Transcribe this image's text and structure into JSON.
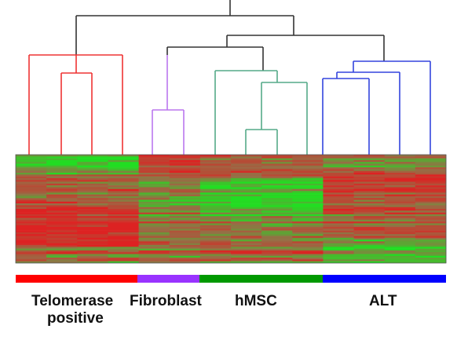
{
  "groups": [
    {
      "label_line1": "Telomerase",
      "label_line2": "positive",
      "color": "#ff0000"
    },
    {
      "label_line1": "Fibroblast",
      "color": "#9933ff"
    },
    {
      "label_line1": "hMSC",
      "color": "#009900"
    },
    {
      "label_line1": "ALT",
      "color": "#0000ff"
    }
  ],
  "colors": {
    "root_tree": "#333333",
    "telomerase_tree": "#ee3333",
    "fibroblast_tree": "#bb77ee",
    "hmsc_tree": "#55aa88",
    "alt_tree": "#3344dd",
    "heatmap_low": "#22dd22",
    "heatmap_high": "#dd2222"
  },
  "heatmap": {
    "columns": 14
  }
}
